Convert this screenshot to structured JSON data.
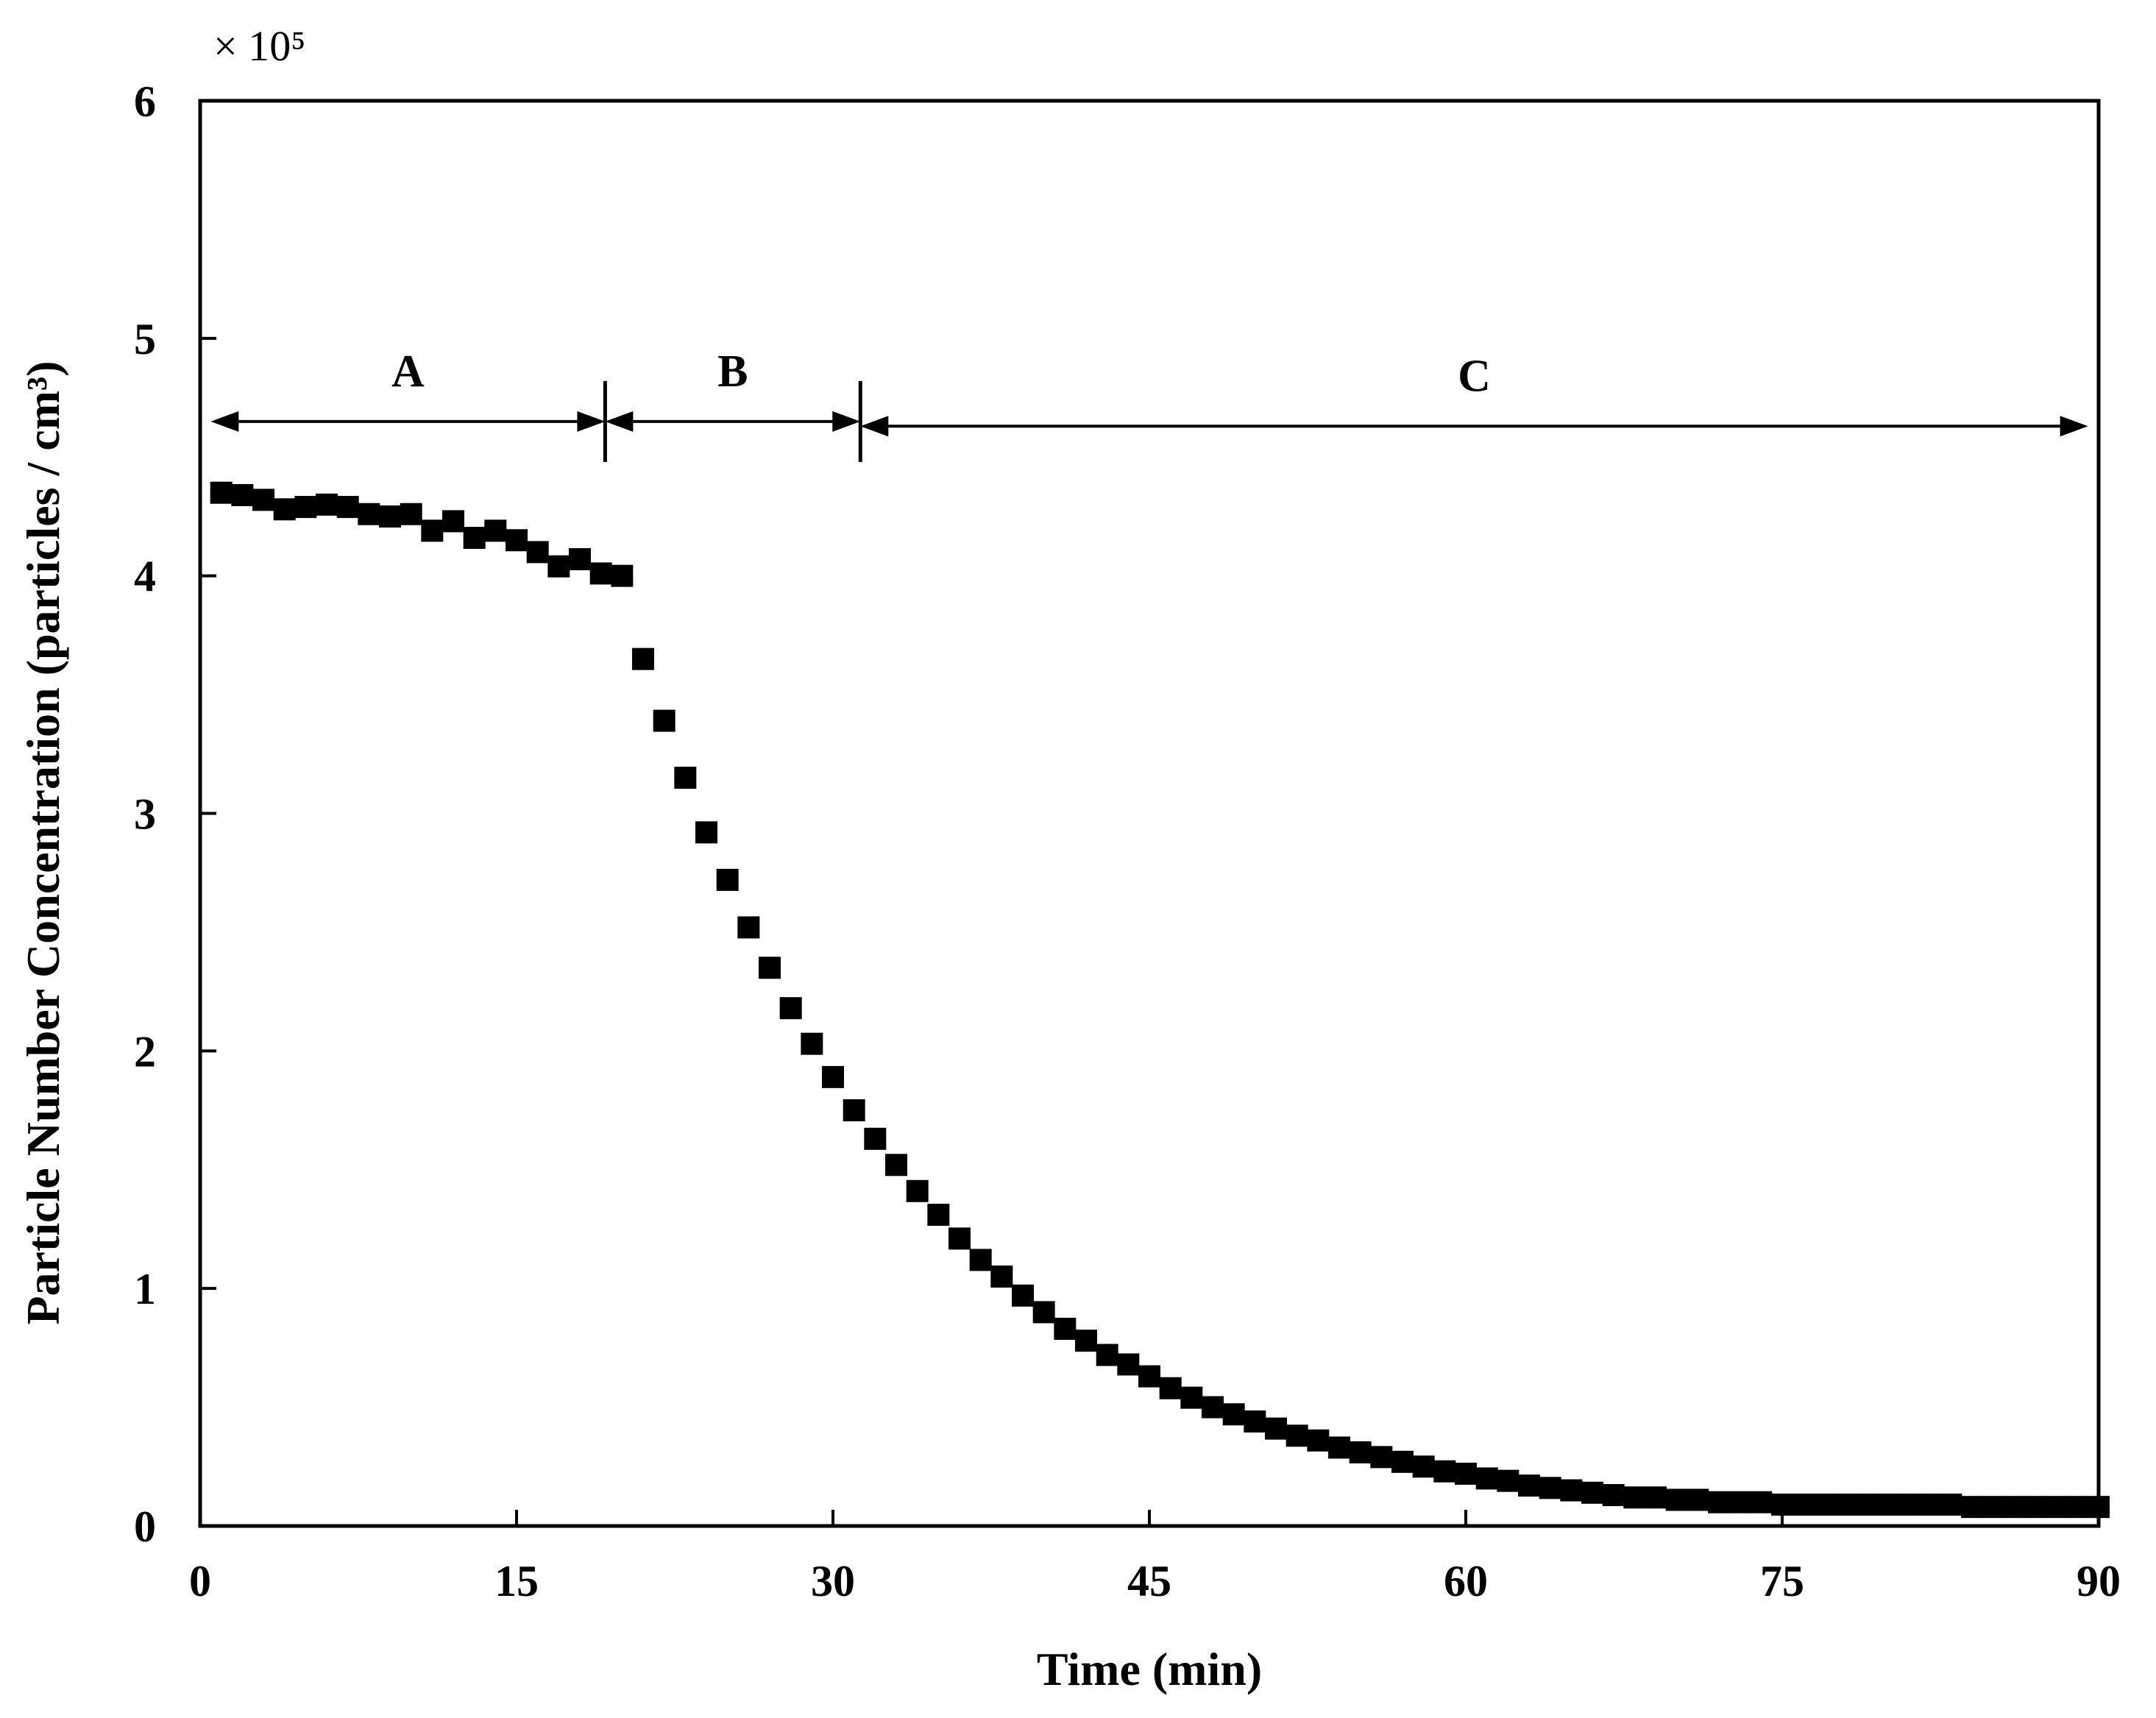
{
  "chart_data": {
    "type": "scatter",
    "title": "",
    "xlabel": "Time (min)",
    "ylabel": "Particle Number Concentration  (particles / cm³)",
    "y_multiplier_label": "× 10⁵",
    "xlim": [
      0,
      90
    ],
    "ylim": [
      0,
      6
    ],
    "x_ticks": [
      0,
      15,
      30,
      45,
      60,
      75,
      90
    ],
    "y_ticks": [
      0,
      1,
      2,
      3,
      4,
      5,
      6
    ],
    "x_tick_labels": [
      "0",
      "15",
      "30",
      "45",
      "60",
      "75",
      "90"
    ],
    "y_tick_labels": [
      "0",
      "1",
      "2",
      "3",
      "4",
      "5",
      "6"
    ],
    "grid": false,
    "marker": "square",
    "series": [
      {
        "name": "Particle number concentration",
        "x": [
          1,
          2,
          3,
          4,
          5,
          6,
          7,
          8,
          9,
          10,
          11,
          12,
          13,
          14,
          15,
          16,
          17,
          18,
          19,
          20,
          21,
          22,
          23,
          24,
          25,
          26,
          27,
          28,
          29,
          30,
          31,
          32,
          33,
          34,
          35,
          36,
          37,
          38,
          39,
          40,
          41,
          42,
          43,
          44,
          45,
          46,
          47,
          48,
          49,
          50,
          51,
          52,
          53,
          54,
          55,
          56,
          57,
          58,
          59,
          60,
          61,
          62,
          63,
          64,
          65,
          66,
          67,
          68,
          69,
          70,
          71,
          72,
          73,
          74,
          75,
          76,
          77,
          78,
          79,
          80,
          81,
          82,
          83,
          84,
          85,
          86,
          87,
          88,
          89,
          90
        ],
        "y": [
          4.35,
          4.34,
          4.32,
          4.28,
          4.29,
          4.3,
          4.29,
          4.26,
          4.25,
          4.26,
          4.19,
          4.23,
          4.16,
          4.19,
          4.15,
          4.1,
          4.04,
          4.07,
          4.01,
          4.0,
          3.65,
          3.39,
          3.15,
          2.92,
          2.72,
          2.52,
          2.35,
          2.18,
          2.03,
          1.89,
          1.75,
          1.63,
          1.52,
          1.41,
          1.31,
          1.21,
          1.12,
          1.05,
          0.97,
          0.9,
          0.83,
          0.78,
          0.72,
          0.68,
          0.63,
          0.58,
          0.54,
          0.5,
          0.47,
          0.44,
          0.41,
          0.38,
          0.36,
          0.33,
          0.31,
          0.29,
          0.27,
          0.25,
          0.23,
          0.22,
          0.2,
          0.19,
          0.17,
          0.16,
          0.15,
          0.14,
          0.13,
          0.12,
          0.12,
          0.11,
          0.11,
          0.1,
          0.1,
          0.1,
          0.09,
          0.09,
          0.09,
          0.09,
          0.09,
          0.09,
          0.09,
          0.09,
          0.09,
          0.08,
          0.08,
          0.08,
          0.08,
          0.08,
          0.08,
          0.08
        ]
      }
    ],
    "annotations": [
      {
        "label": "A",
        "x_start": 0.5,
        "x_end": 19.2,
        "y": 4.65
      },
      {
        "label": "B",
        "x_start": 19.2,
        "x_end": 31.3,
        "y": 4.65
      },
      {
        "label": "C",
        "x_start": 31.3,
        "x_end": 89.5,
        "y": 4.63
      }
    ],
    "phase_boundaries": [
      19.2,
      31.3
    ]
  }
}
